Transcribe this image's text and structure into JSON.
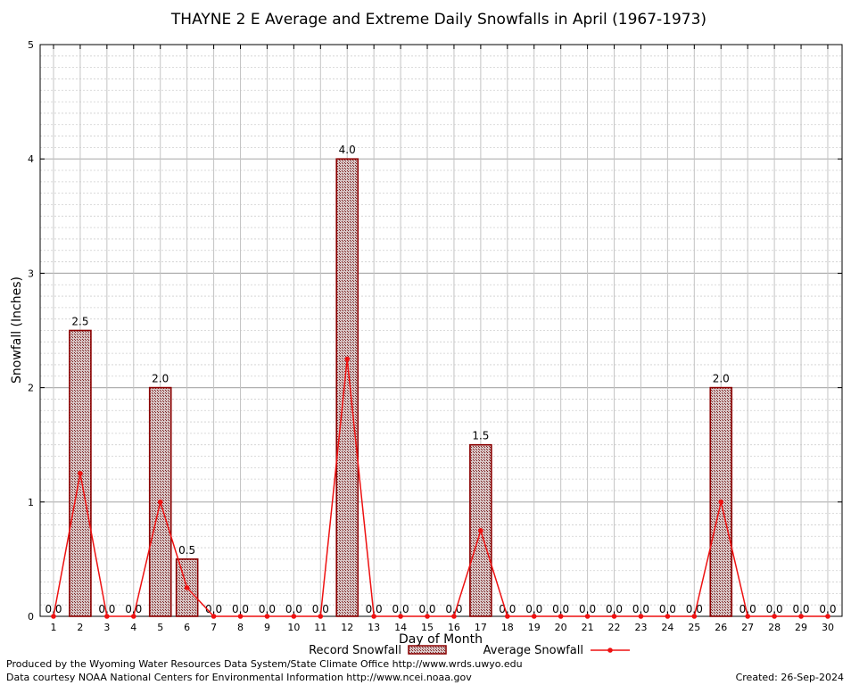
{
  "chart_data": {
    "type": "bar",
    "title": "THAYNE 2 E Average and Extreme Daily Snowfalls in April (1967-1973)",
    "xlabel": "Day of Month",
    "ylabel": "Snowfall (Inches)",
    "ylim": [
      0,
      5
    ],
    "yticks": [
      "0",
      "1",
      "2",
      "3",
      "4",
      "5"
    ],
    "categories": [
      "1",
      "2",
      "3",
      "4",
      "5",
      "6",
      "7",
      "8",
      "9",
      "10",
      "11",
      "12",
      "13",
      "14",
      "15",
      "16",
      "17",
      "18",
      "19",
      "20",
      "21",
      "22",
      "23",
      "24",
      "25",
      "26",
      "27",
      "28",
      "29",
      "30"
    ],
    "series": [
      {
        "name": "Record Snowfall",
        "kind": "bar",
        "color": "#8b0000",
        "values": [
          0,
          2.5,
          0,
          0,
          2.0,
          0.5,
          0,
          0,
          0,
          0,
          0,
          4.0,
          0,
          0,
          0,
          0,
          1.5,
          0,
          0,
          0,
          0,
          0,
          0,
          0,
          0,
          2.0,
          0,
          0,
          0,
          0
        ],
        "labels": [
          "0.0",
          "2.5",
          "0.0",
          "0.0",
          "2.0",
          "0.5",
          "0.0",
          "0.0",
          "0.0",
          "0.0",
          "0.0",
          "4.0",
          "0.0",
          "0.0",
          "0.0",
          "0.0",
          "1.5",
          "0.0",
          "0.0",
          "0.0",
          "0.0",
          "0.0",
          "0.0",
          "0.0",
          "0.0",
          "2.0",
          "0.0",
          "0.0",
          "0.0",
          "0.0"
        ]
      },
      {
        "name": "Average Snowfall",
        "kind": "line",
        "color": "#ee1111",
        "values": [
          0,
          1.25,
          0,
          0,
          1.0,
          0.25,
          0,
          0,
          0,
          0,
          0,
          2.25,
          0,
          0,
          0,
          0,
          0.75,
          0,
          0,
          0,
          0,
          0,
          0,
          0,
          0,
          1.0,
          0,
          0,
          0,
          0
        ]
      }
    ],
    "grid": true,
    "legend": "bottom-center"
  },
  "footer": {
    "line1": "Produced by the Wyoming Water Resources Data System/State Climate Office http://www.wrds.uwyo.edu",
    "line2": "Data courtesy NOAA National Centers for Environmental Information http://www.ncei.noaa.gov",
    "created": "Created:  26-Sep-2024"
  }
}
